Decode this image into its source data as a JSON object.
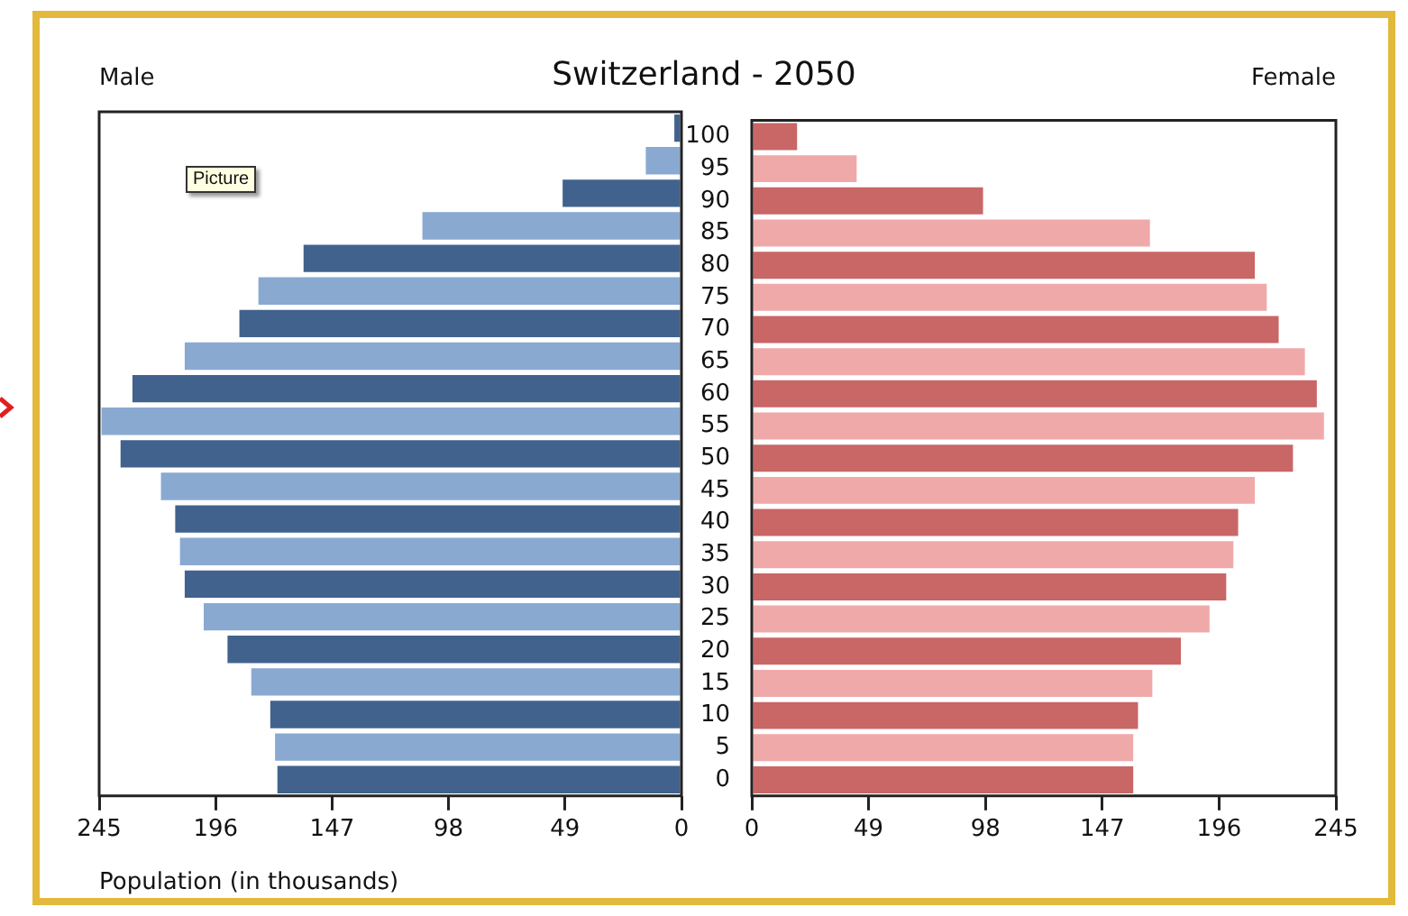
{
  "chart_data": [
    {
      "type": "bar",
      "orientation": "horizontal",
      "title": "Switzerland - 2050",
      "xlabel": "Population (in thousands)",
      "annotations": [
        "Picture"
      ],
      "categories": [
        "100",
        "95",
        "90",
        "85",
        "80",
        "75",
        "70",
        "65",
        "60",
        "55",
        "50",
        "45",
        "40",
        "35",
        "30",
        "25",
        "20",
        "15",
        "10",
        "5",
        "0"
      ],
      "series": [
        {
          "name": "Male",
          "colors": [
            "#41628d",
            "#89a9d1",
            "#41628d",
            "#89a9d1",
            "#41628d",
            "#89a9d1",
            "#41628d",
            "#89a9d1",
            "#41628d",
            "#89a9d1",
            "#41628d",
            "#89a9d1",
            "#41628d",
            "#89a9d1",
            "#41628d",
            "#89a9d1",
            "#41628d",
            "#89a9d1",
            "#41628d",
            "#89a9d1",
            "#41628d"
          ],
          "values": [
            3,
            15,
            50,
            109,
            159,
            178,
            186,
            209,
            231,
            244,
            236,
            219,
            213,
            211,
            209,
            201,
            191,
            181,
            173,
            171,
            170
          ]
        }
      ],
      "xlim": [
        245,
        0
      ],
      "xticks": [
        245,
        196,
        147,
        98,
        49,
        0
      ],
      "tick_labels": "x"
    },
    {
      "type": "bar",
      "orientation": "horizontal",
      "categories": [
        "100",
        "95",
        "90",
        "85",
        "80",
        "75",
        "70",
        "65",
        "60",
        "55",
        "50",
        "45",
        "40",
        "35",
        "30",
        "25",
        "20",
        "15",
        "10",
        "5",
        "0"
      ],
      "series": [
        {
          "name": "Female",
          "colors": [
            "#c96666",
            "#f0a9a9",
            "#c96666",
            "#f0a9a9",
            "#c96666",
            "#f0a9a9",
            "#c96666",
            "#f0a9a9",
            "#c96666",
            "#f0a9a9",
            "#c96666",
            "#f0a9a9",
            "#c96666",
            "#f0a9a9",
            "#c96666",
            "#f0a9a9",
            "#c96666",
            "#f0a9a9",
            "#c96666",
            "#f0a9a9",
            "#c96666"
          ],
          "values": [
            19,
            44,
            97,
            167,
            211,
            216,
            221,
            232,
            237,
            240,
            227,
            211,
            204,
            202,
            199,
            192,
            180,
            168,
            162,
            160,
            160
          ]
        }
      ],
      "xlim": [
        0,
        245
      ],
      "xticks": [
        0,
        49,
        98,
        147,
        196,
        245
      ]
    }
  ]
}
